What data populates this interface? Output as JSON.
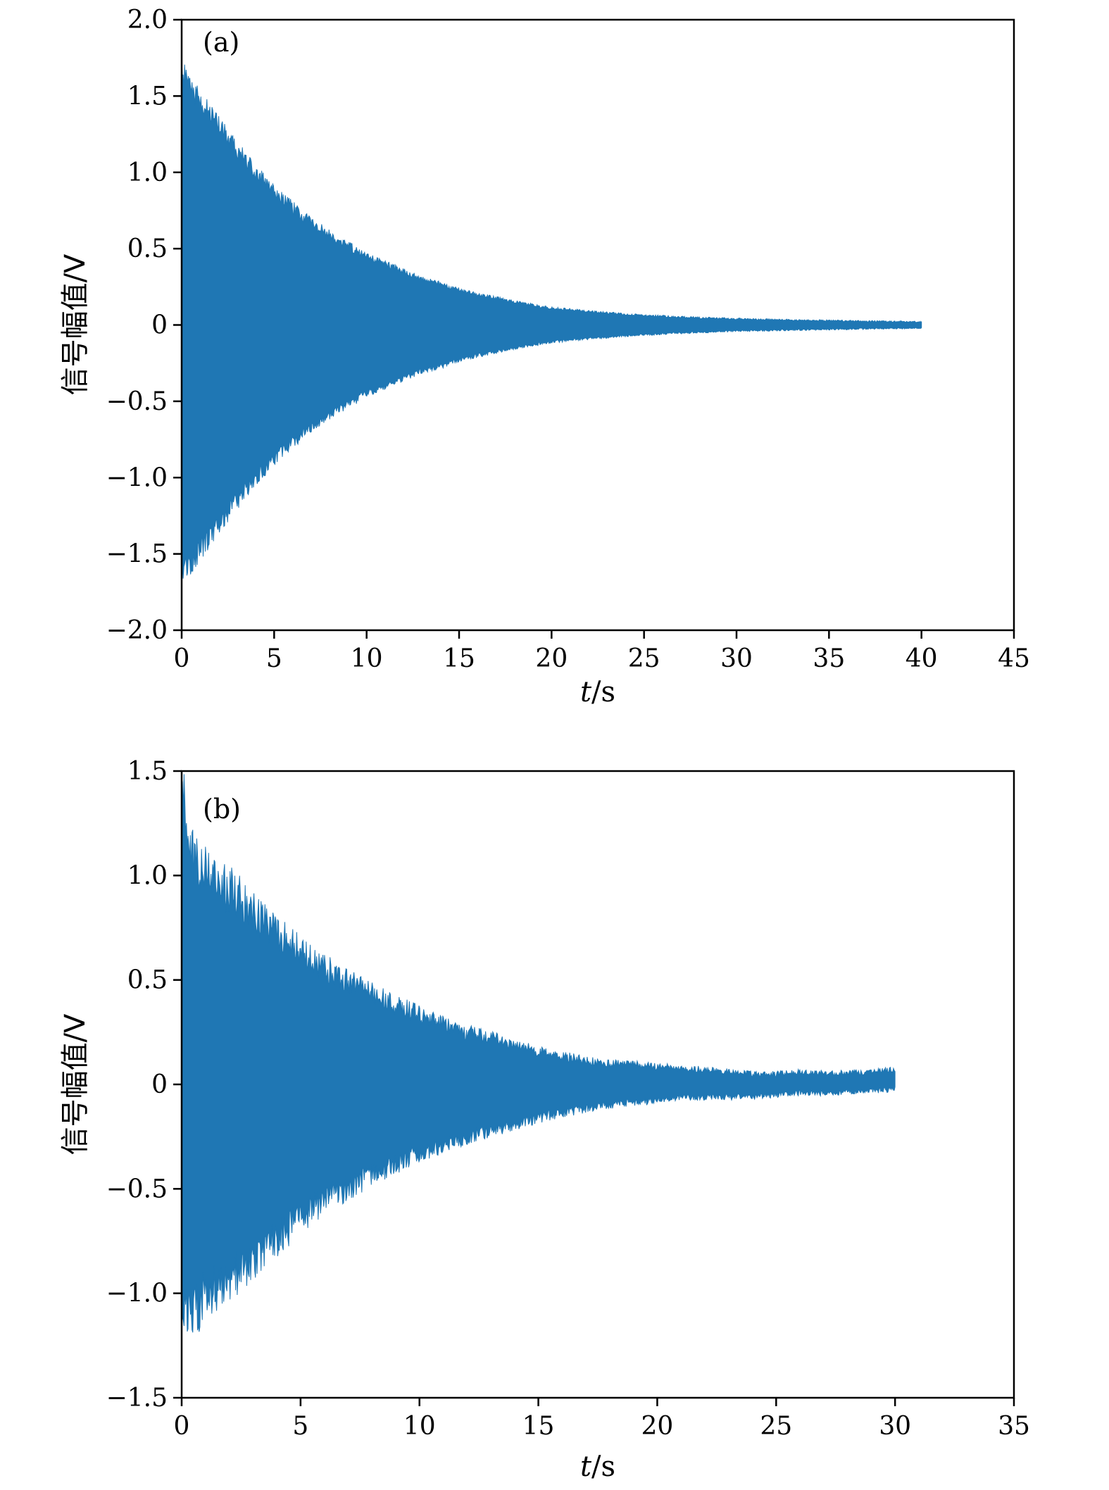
{
  "chart_data": [
    {
      "type": "area",
      "panel": "(a)",
      "xlabel": "t/s",
      "xlabel_var": "t",
      "xlabel_unit": "/s",
      "ylabel": "信号幅值/V",
      "xlim": [
        0,
        45
      ],
      "ylim": [
        -2.0,
        2.0
      ],
      "xticks": [
        0,
        5,
        10,
        15,
        20,
        25,
        30,
        35,
        40,
        45
      ],
      "xtick_labels": [
        "0",
        "5",
        "10",
        "15",
        "20",
        "25",
        "30",
        "35",
        "40",
        "45"
      ],
      "yticks": [
        -2.0,
        -1.5,
        -1.0,
        -0.5,
        0,
        0.5,
        1.0,
        1.5,
        2.0
      ],
      "ytick_labels": [
        "−2.0",
        "−1.5",
        "−1.0",
        "−0.5",
        "0",
        "0.5",
        "1.0",
        "1.5",
        "2.0"
      ],
      "line_color": "#1f77b4",
      "grid": false,
      "legend": null,
      "noise": 0.05,
      "noise_abs": 0.004,
      "seed": 12345,
      "signal": {
        "kind": "decaying-oscillation-envelope",
        "t": [
          0,
          1,
          2,
          3,
          4,
          5,
          6,
          7,
          8,
          9,
          10,
          11,
          12,
          13,
          14,
          15,
          16,
          17,
          18,
          19,
          20,
          22,
          24,
          26,
          28,
          30,
          32,
          34,
          36,
          38,
          40
        ],
        "amplitude": [
          1.65,
          1.47,
          1.3,
          1.15,
          1.0,
          0.88,
          0.77,
          0.67,
          0.59,
          0.52,
          0.45,
          0.4,
          0.35,
          0.3,
          0.27,
          0.23,
          0.2,
          0.175,
          0.15,
          0.13,
          0.11,
          0.088,
          0.07,
          0.057,
          0.047,
          0.04,
          0.034,
          0.03,
          0.026,
          0.023,
          0.02
        ]
      }
    },
    {
      "type": "area",
      "panel": "(b)",
      "xlabel": "t/s",
      "xlabel_var": "t",
      "xlabel_unit": "/s",
      "ylabel": "信号幅值/V",
      "xlim": [
        0,
        35
      ],
      "ylim": [
        -1.5,
        1.5
      ],
      "xticks": [
        0,
        5,
        10,
        15,
        20,
        25,
        30,
        35
      ],
      "xtick_labels": [
        "0",
        "5",
        "10",
        "15",
        "20",
        "25",
        "30",
        "35"
      ],
      "yticks": [
        -1.5,
        -1.0,
        -0.5,
        0,
        0.5,
        1.0,
        1.5
      ],
      "ytick_labels": [
        "−1.5",
        "−1.0",
        "−0.5",
        "0",
        "0.5",
        "1.0",
        "1.5"
      ],
      "line_color": "#1f77b4",
      "grid": false,
      "legend": null,
      "noise": 0.12,
      "noise_abs": 0.008,
      "seed": 98765,
      "signal": {
        "kind": "decaying-oscillation-envelope-noisy",
        "t": [
          0,
          0.2,
          0.5,
          1,
          2,
          3,
          4,
          5,
          6,
          7,
          8,
          9,
          10,
          11,
          12,
          13,
          14,
          15,
          16,
          17,
          18,
          19,
          20,
          21,
          22,
          23,
          24,
          25,
          26,
          27,
          28,
          29,
          30
        ],
        "amplitude": [
          1.35,
          1.15,
          1.08,
          1.02,
          0.93,
          0.83,
          0.73,
          0.64,
          0.56,
          0.49,
          0.43,
          0.38,
          0.33,
          0.29,
          0.25,
          0.22,
          0.19,
          0.16,
          0.135,
          0.115,
          0.1,
          0.09,
          0.08,
          0.07,
          0.065,
          0.06,
          0.055,
          0.05,
          0.05,
          0.048,
          0.045,
          0.045,
          0.05
        ],
        "center": [
          0.15,
          0.05,
          0,
          0,
          0,
          0,
          0,
          0,
          0,
          0,
          0,
          0,
          0,
          0,
          0,
          0,
          0,
          0,
          0,
          0,
          0,
          0.005,
          0.005,
          0.01,
          0.005,
          0,
          -0.005,
          0,
          0.01,
          0.005,
          0.01,
          0.015,
          0.025
        ]
      }
    }
  ]
}
